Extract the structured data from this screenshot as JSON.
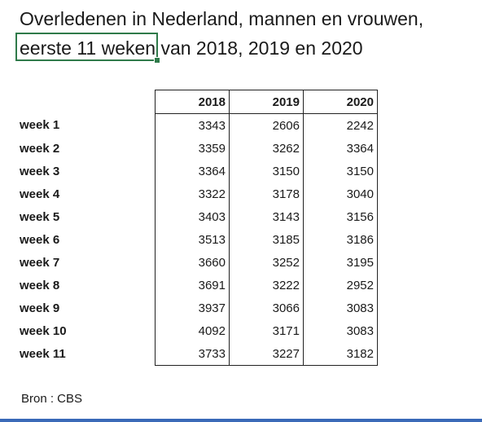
{
  "title": {
    "line1": "Overledenen in Nederland, mannen en vrouwen,",
    "line2": "eerste 11 weken van 2018, 2019 en 2020"
  },
  "table": {
    "columns": [
      "2018",
      "2019",
      "2020"
    ],
    "rows": [
      {
        "label": "week 1",
        "values": [
          "3343",
          "2606",
          "2242"
        ]
      },
      {
        "label": "week 2",
        "values": [
          "3359",
          "3262",
          "3364"
        ]
      },
      {
        "label": "week 3",
        "values": [
          "3364",
          "3150",
          "3150"
        ]
      },
      {
        "label": "week 4",
        "values": [
          "3322",
          "3178",
          "3040"
        ]
      },
      {
        "label": "week 5",
        "values": [
          "3403",
          "3143",
          "3156"
        ]
      },
      {
        "label": "week 6",
        "values": [
          "3513",
          "3185",
          "3186"
        ]
      },
      {
        "label": "week 7",
        "values": [
          "3660",
          "3252",
          "3195"
        ]
      },
      {
        "label": "week 8",
        "values": [
          "3691",
          "3222",
          "2952"
        ]
      },
      {
        "label": "week 9",
        "values": [
          "3937",
          "3066",
          "3083"
        ]
      },
      {
        "label": "week 10",
        "values": [
          "4092",
          "3171",
          "3083"
        ]
      },
      {
        "label": "week 11",
        "values": [
          "3733",
          "3227",
          "3182"
        ]
      }
    ]
  },
  "source": "Bron : CBS",
  "colors": {
    "selection": "#2f7a4a",
    "bottom_bar": "#3a6ab8"
  }
}
